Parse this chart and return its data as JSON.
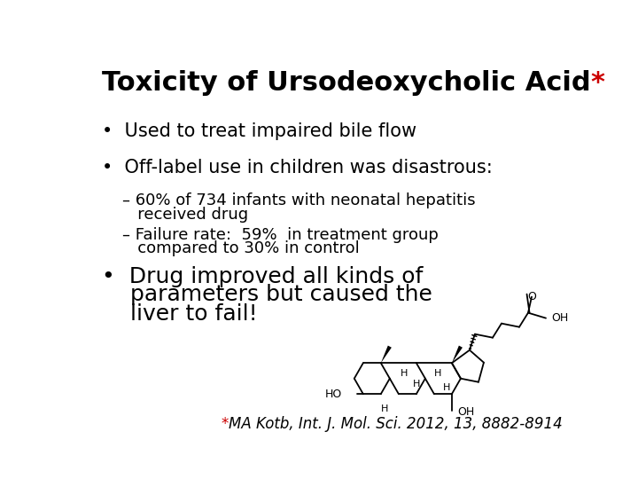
{
  "title_black": "Toxicity of Ursodeoxycholic Acid",
  "title_star": "*",
  "title_fontsize": 22,
  "title_fontweight": "bold",
  "title_color_black": "#000000",
  "title_color_star": "#cc0000",
  "background_color": "#ffffff",
  "bullet1": "Used to treat impaired bile flow",
  "bullet2": "Off-label use in children was disastrous:",
  "sub1_line1": "– 60% of 734 infants with neonatal hepatitis",
  "sub1_line2": "   received drug",
  "sub2_line1": "– Failure rate:  59%  in treatment group",
  "sub2_line2": "   compared to 30% in control",
  "bullet3_line1": "Drug improved all kinds of",
  "bullet3_line2": "parameters but caused the",
  "bullet3_line3": "liver to fail!",
  "footnote_star": "*",
  "footnote_text": "MA Kotb, Int. J. Mol. Sci. 2012, 13, 8882-8914",
  "bullet_fontsize": 15,
  "sub_fontsize": 13,
  "bullet3_fontsize": 18,
  "footnote_fontsize": 12,
  "bullet_color": "#000000",
  "star_color": "#cc0000",
  "footnote_color_text": "#000000"
}
